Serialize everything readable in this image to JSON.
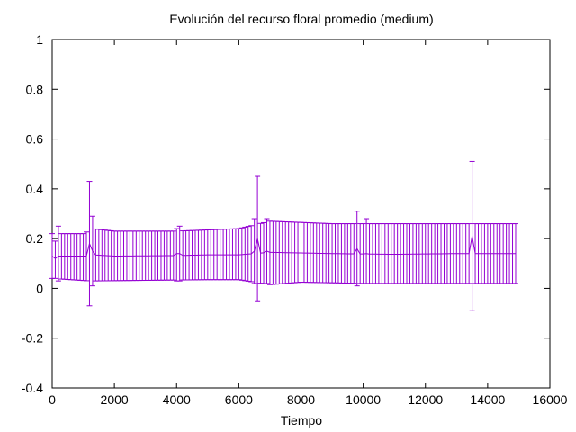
{
  "chart_data": {
    "type": "line",
    "title": "Evolución del recurso floral promedio (medium)",
    "xlabel": "Tiempo",
    "ylabel": "",
    "xlim": [
      0,
      16000
    ],
    "ylim": [
      -0.4,
      1
    ],
    "xticks": [
      0,
      2000,
      4000,
      6000,
      8000,
      10000,
      12000,
      14000,
      16000
    ],
    "yticks": [
      -0.4,
      -0.2,
      0,
      0.2,
      0.4,
      0.6,
      0.8,
      1
    ],
    "grid": false,
    "legend": "none",
    "series_color": "#9400d3",
    "error_bar_step": 100,
    "x_start": 0,
    "x_end": 14900,
    "mean_profile": [
      [
        0,
        0.13
      ],
      [
        1200,
        0.13
      ],
      [
        1300,
        0.135
      ],
      [
        2000,
        0.13
      ],
      [
        4000,
        0.132
      ],
      [
        5000,
        0.135
      ],
      [
        6000,
        0.135
      ],
      [
        6500,
        0.14
      ],
      [
        7000,
        0.145
      ],
      [
        9000,
        0.14
      ],
      [
        11000,
        0.137
      ],
      [
        13000,
        0.14
      ],
      [
        14900,
        0.14
      ]
    ],
    "upper_profile": [
      [
        0,
        0.22
      ],
      [
        1000,
        0.22
      ],
      [
        1300,
        0.24
      ],
      [
        2000,
        0.23
      ],
      [
        4000,
        0.23
      ],
      [
        5000,
        0.235
      ],
      [
        6000,
        0.24
      ],
      [
        6500,
        0.255
      ],
      [
        7000,
        0.27
      ],
      [
        8000,
        0.265
      ],
      [
        9000,
        0.26
      ],
      [
        14900,
        0.26
      ]
    ],
    "lower_profile": [
      [
        0,
        0.04
      ],
      [
        1200,
        0.03
      ],
      [
        1300,
        0.03
      ],
      [
        5000,
        0.035
      ],
      [
        6000,
        0.035
      ],
      [
        6500,
        0.025
      ],
      [
        7000,
        0.015
      ],
      [
        8000,
        0.025
      ],
      [
        10000,
        0.02
      ],
      [
        14900,
        0.02
      ]
    ],
    "outlier_bars": [
      {
        "x": 100,
        "mean": 0.12,
        "low": 0.04,
        "high": 0.19
      },
      {
        "x": 200,
        "mean": 0.13,
        "low": 0.03,
        "high": 0.25
      },
      {
        "x": 1200,
        "mean": 0.18,
        "low": -0.07,
        "high": 0.43
      },
      {
        "x": 1300,
        "mean": 0.15,
        "low": 0.01,
        "high": 0.29
      },
      {
        "x": 4000,
        "mean": 0.14,
        "low": 0.03,
        "high": 0.24
      },
      {
        "x": 4100,
        "mean": 0.14,
        "low": 0.03,
        "high": 0.25
      },
      {
        "x": 6500,
        "mean": 0.15,
        "low": 0.02,
        "high": 0.28
      },
      {
        "x": 6600,
        "mean": 0.2,
        "low": -0.05,
        "high": 0.45
      },
      {
        "x": 6900,
        "mean": 0.15,
        "low": 0.02,
        "high": 0.28
      },
      {
        "x": 9800,
        "mean": 0.16,
        "low": 0.01,
        "high": 0.31
      },
      {
        "x": 10100,
        "mean": 0.14,
        "low": 0.02,
        "high": 0.28
      },
      {
        "x": 13500,
        "mean": 0.21,
        "low": -0.09,
        "high": 0.51
      }
    ]
  }
}
